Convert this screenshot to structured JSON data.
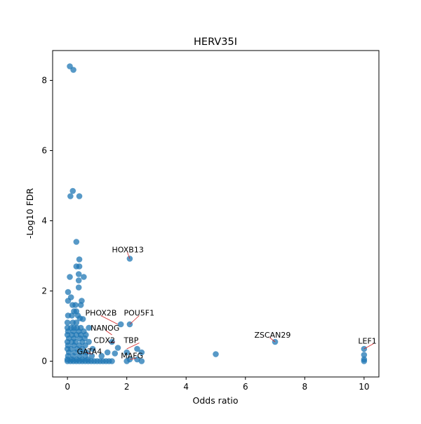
{
  "chart_data": {
    "type": "scatter",
    "title": "HERV35I",
    "xlabel": "Odds ratio",
    "ylabel": "-Log10 FDR",
    "xlim": [
      -0.5,
      10.5
    ],
    "ylim": [
      -0.45,
      8.85
    ],
    "x_ticks": [
      0,
      2,
      4,
      6,
      8,
      10
    ],
    "y_ticks": [
      0,
      2,
      4,
      6,
      8
    ],
    "grid": false,
    "point_color": "#1f77b4",
    "annotation_line_color": "#d62728",
    "points": [
      {
        "x": 0.08,
        "y": 8.4
      },
      {
        "x": 0.2,
        "y": 8.3
      },
      {
        "x": 0.18,
        "y": 4.85
      },
      {
        "x": 0.1,
        "y": 4.7
      },
      {
        "x": 0.4,
        "y": 4.7
      },
      {
        "x": 0.3,
        "y": 3.4
      },
      {
        "x": 2.1,
        "y": 2.92
      },
      {
        "x": 0.4,
        "y": 2.9
      },
      {
        "x": 0.3,
        "y": 2.7
      },
      {
        "x": 0.4,
        "y": 2.7
      },
      {
        "x": 0.38,
        "y": 2.48
      },
      {
        "x": 0.08,
        "y": 2.4
      },
      {
        "x": 0.55,
        "y": 2.4
      },
      {
        "x": 0.38,
        "y": 2.3
      },
      {
        "x": 0.38,
        "y": 2.1
      },
      {
        "x": 0.02,
        "y": 1.97
      },
      {
        "x": 0.12,
        "y": 1.82
      },
      {
        "x": 0.02,
        "y": 1.72
      },
      {
        "x": 0.48,
        "y": 1.72
      },
      {
        "x": 0.17,
        "y": 1.6
      },
      {
        "x": 0.27,
        "y": 1.6
      },
      {
        "x": 0.45,
        "y": 1.6
      },
      {
        "x": 0.22,
        "y": 1.42
      },
      {
        "x": 0.3,
        "y": 1.42
      },
      {
        "x": 0.02,
        "y": 1.3
      },
      {
        "x": 0.15,
        "y": 1.3
      },
      {
        "x": 0.35,
        "y": 1.3
      },
      {
        "x": 0.42,
        "y": 1.22
      },
      {
        "x": 0.52,
        "y": 1.2
      },
      {
        "x": 0.0,
        "y": 1.1
      },
      {
        "x": 0.18,
        "y": 1.1
      },
      {
        "x": 0.3,
        "y": 1.1
      },
      {
        "x": 1.8,
        "y": 1.05
      },
      {
        "x": 2.1,
        "y": 1.05
      },
      {
        "x": 0.0,
        "y": 0.95
      },
      {
        "x": 0.12,
        "y": 0.95
      },
      {
        "x": 0.22,
        "y": 0.95
      },
      {
        "x": 0.32,
        "y": 0.95
      },
      {
        "x": 0.45,
        "y": 0.95
      },
      {
        "x": 0.72,
        "y": 0.95
      },
      {
        "x": 0.02,
        "y": 0.85
      },
      {
        "x": 0.2,
        "y": 0.85
      },
      {
        "x": 0.38,
        "y": 0.85
      },
      {
        "x": 0.55,
        "y": 0.85
      },
      {
        "x": 0.0,
        "y": 0.75
      },
      {
        "x": 0.15,
        "y": 0.75
      },
      {
        "x": 0.3,
        "y": 0.75
      },
      {
        "x": 0.45,
        "y": 0.75
      },
      {
        "x": 0.62,
        "y": 0.75
      },
      {
        "x": 0.05,
        "y": 0.65
      },
      {
        "x": 0.22,
        "y": 0.65
      },
      {
        "x": 0.42,
        "y": 0.65
      },
      {
        "x": 0.58,
        "y": 0.65
      },
      {
        "x": 0.0,
        "y": 0.55
      },
      {
        "x": 0.15,
        "y": 0.55
      },
      {
        "x": 0.28,
        "y": 0.55
      },
      {
        "x": 0.5,
        "y": 0.55
      },
      {
        "x": 0.72,
        "y": 0.55
      },
      {
        "x": 1.5,
        "y": 0.55
      },
      {
        "x": 7.0,
        "y": 0.55
      },
      {
        "x": 0.02,
        "y": 0.45
      },
      {
        "x": 0.22,
        "y": 0.45
      },
      {
        "x": 0.4,
        "y": 0.45
      },
      {
        "x": 0.6,
        "y": 0.45
      },
      {
        "x": 0.0,
        "y": 0.35
      },
      {
        "x": 0.12,
        "y": 0.35
      },
      {
        "x": 0.32,
        "y": 0.35
      },
      {
        "x": 0.5,
        "y": 0.35
      },
      {
        "x": 0.85,
        "y": 0.35
      },
      {
        "x": 1.7,
        "y": 0.38
      },
      {
        "x": 2.35,
        "y": 0.35
      },
      {
        "x": 10.0,
        "y": 0.35
      },
      {
        "x": 0.05,
        "y": 0.25
      },
      {
        "x": 0.25,
        "y": 0.25
      },
      {
        "x": 0.45,
        "y": 0.25
      },
      {
        "x": 0.65,
        "y": 0.25
      },
      {
        "x": 1.35,
        "y": 0.25
      },
      {
        "x": 1.6,
        "y": 0.22
      },
      {
        "x": 2.0,
        "y": 0.25
      },
      {
        "x": 2.5,
        "y": 0.25
      },
      {
        "x": 0.02,
        "y": 0.15
      },
      {
        "x": 0.2,
        "y": 0.15
      },
      {
        "x": 0.4,
        "y": 0.15
      },
      {
        "x": 0.6,
        "y": 0.15
      },
      {
        "x": 0.82,
        "y": 0.15
      },
      {
        "x": 1.15,
        "y": 0.15
      },
      {
        "x": 5.0,
        "y": 0.2
      },
      {
        "x": 10.0,
        "y": 0.18
      },
      {
        "x": 0.0,
        "y": 0.05
      },
      {
        "x": 0.15,
        "y": 0.05
      },
      {
        "x": 0.32,
        "y": 0.05
      },
      {
        "x": 0.5,
        "y": 0.05
      },
      {
        "x": 0.68,
        "y": 0.05
      },
      {
        "x": 2.1,
        "y": 0.05
      },
      {
        "x": 2.35,
        "y": 0.05
      },
      {
        "x": 10.0,
        "y": 0.05
      },
      {
        "x": 0.0,
        "y": 0.0
      },
      {
        "x": 0.1,
        "y": 0.0
      },
      {
        "x": 0.2,
        "y": 0.0
      },
      {
        "x": 0.3,
        "y": 0.0
      },
      {
        "x": 0.4,
        "y": 0.0
      },
      {
        "x": 0.5,
        "y": 0.0
      },
      {
        "x": 0.6,
        "y": 0.0
      },
      {
        "x": 0.7,
        "y": 0.0
      },
      {
        "x": 0.8,
        "y": 0.0
      },
      {
        "x": 0.9,
        "y": 0.0
      },
      {
        "x": 1.0,
        "y": 0.0
      },
      {
        "x": 1.1,
        "y": 0.0
      },
      {
        "x": 1.2,
        "y": 0.0
      },
      {
        "x": 1.3,
        "y": 0.0
      },
      {
        "x": 1.4,
        "y": 0.0
      },
      {
        "x": 1.5,
        "y": 0.0
      },
      {
        "x": 2.0,
        "y": 0.0
      },
      {
        "x": 2.5,
        "y": 0.0
      },
      {
        "x": 10.0,
        "y": 0.0
      }
    ],
    "annotations": [
      {
        "text": "HOXB13",
        "x": 2.1,
        "y": 2.92,
        "tx": 1.5,
        "ty": 3.1
      },
      {
        "text": "PHOX2B",
        "x": 1.7,
        "y": 1.05,
        "tx": 0.6,
        "ty": 1.3
      },
      {
        "text": "POU5F1",
        "x": 2.1,
        "y": 1.05,
        "tx": 1.9,
        "ty": 1.3
      },
      {
        "text": "NANOG",
        "x": 1.5,
        "y": 0.75,
        "tx": 0.78,
        "ty": 0.87
      },
      {
        "text": "CDX2",
        "x": 1.6,
        "y": 0.55,
        "tx": 0.88,
        "ty": 0.52
      },
      {
        "text": "TBP",
        "x": 2.0,
        "y": 0.35,
        "tx": 1.9,
        "ty": 0.52
      },
      {
        "text": "GATA4",
        "x": 0.6,
        "y": 0.25,
        "tx": 0.32,
        "ty": 0.2
      },
      {
        "text": "MAFG",
        "x": 2.1,
        "y": 0.05,
        "tx": 1.8,
        "ty": 0.08
      },
      {
        "text": "ZSCAN29",
        "x": 7.0,
        "y": 0.55,
        "tx": 6.3,
        "ty": 0.67
      },
      {
        "text": "LEF1",
        "x": 10.0,
        "y": 0.35,
        "tx": 9.8,
        "ty": 0.5
      }
    ]
  }
}
